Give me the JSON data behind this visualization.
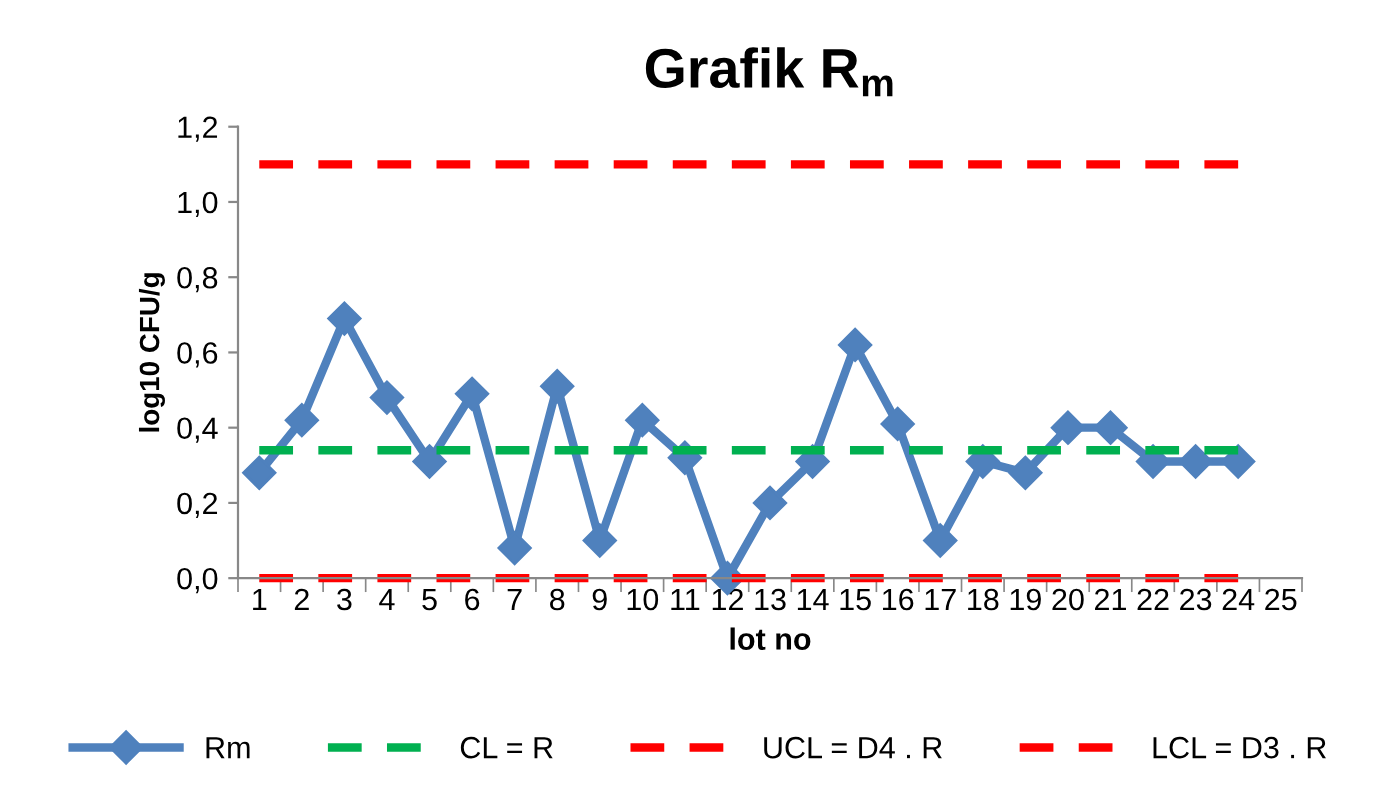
{
  "chart_data": {
    "type": "line",
    "title": "Grafik R$_{m}$",
    "xlabel": "lot no",
    "ylabel": "log10 CFU/g",
    "categories": [
      "1",
      "2",
      "3",
      "4",
      "5",
      "6",
      "7",
      "8",
      "9",
      "10",
      "11",
      "12",
      "13",
      "14",
      "15",
      "16",
      "17",
      "18",
      "19",
      "20",
      "21",
      "22",
      "23",
      "24",
      "25"
    ],
    "series": [
      {
        "name": "Rm",
        "color": "#4f81bd",
        "marker": "diamond",
        "line_style": "solid",
        "values": [
          0.28,
          0.42,
          0.69,
          0.48,
          0.31,
          0.49,
          0.08,
          0.51,
          0.1,
          0.42,
          0.32,
          0.0,
          0.2,
          0.31,
          0.62,
          0.41,
          0.1,
          0.31,
          0.28,
          0.4,
          0.4,
          0.31,
          0.31,
          0.31,
          null
        ]
      },
      {
        "name": "CL = R",
        "color": "#00b050",
        "marker": "none",
        "line_style": "dashed",
        "values": [
          0.34,
          0.34,
          0.34,
          0.34,
          0.34,
          0.34,
          0.34,
          0.34,
          0.34,
          0.34,
          0.34,
          0.34,
          0.34,
          0.34,
          0.34,
          0.34,
          0.34,
          0.34,
          0.34,
          0.34,
          0.34,
          0.34,
          0.34,
          0.34,
          null
        ]
      },
      {
        "name": "UCL = D4 . R",
        "color": "#ff0000",
        "marker": "none",
        "line_style": "dashed",
        "values": [
          1.1,
          1.1,
          1.1,
          1.1,
          1.1,
          1.1,
          1.1,
          1.1,
          1.1,
          1.1,
          1.1,
          1.1,
          1.1,
          1.1,
          1.1,
          1.1,
          1.1,
          1.1,
          1.1,
          1.1,
          1.1,
          1.1,
          1.1,
          1.1,
          null
        ]
      },
      {
        "name": "LCL = D3 . R",
        "color": "#ff0000",
        "marker": "none",
        "line_style": "dashed",
        "values": [
          0.0,
          0.0,
          0.0,
          0.0,
          0.0,
          0.0,
          0.0,
          0.0,
          0.0,
          0.0,
          0.0,
          0.0,
          0.0,
          0.0,
          0.0,
          0.0,
          0.0,
          0.0,
          0.0,
          0.0,
          0.0,
          0.0,
          0.0,
          0.0,
          null
        ]
      }
    ],
    "ylim": [
      0,
      1.2
    ],
    "yticks": [
      {
        "value": 0,
        "label": "0,0"
      },
      {
        "value": 0.2,
        "label": "0,2"
      },
      {
        "value": 0.4,
        "label": "0,4"
      },
      {
        "value": 0.6,
        "label": "0,6"
      },
      {
        "value": 0.8,
        "label": "0,8"
      },
      {
        "value": 1.0,
        "label": "1,0"
      },
      {
        "value": 1.2,
        "label": "1,2"
      }
    ],
    "grid": false,
    "legend": "bottom"
  }
}
